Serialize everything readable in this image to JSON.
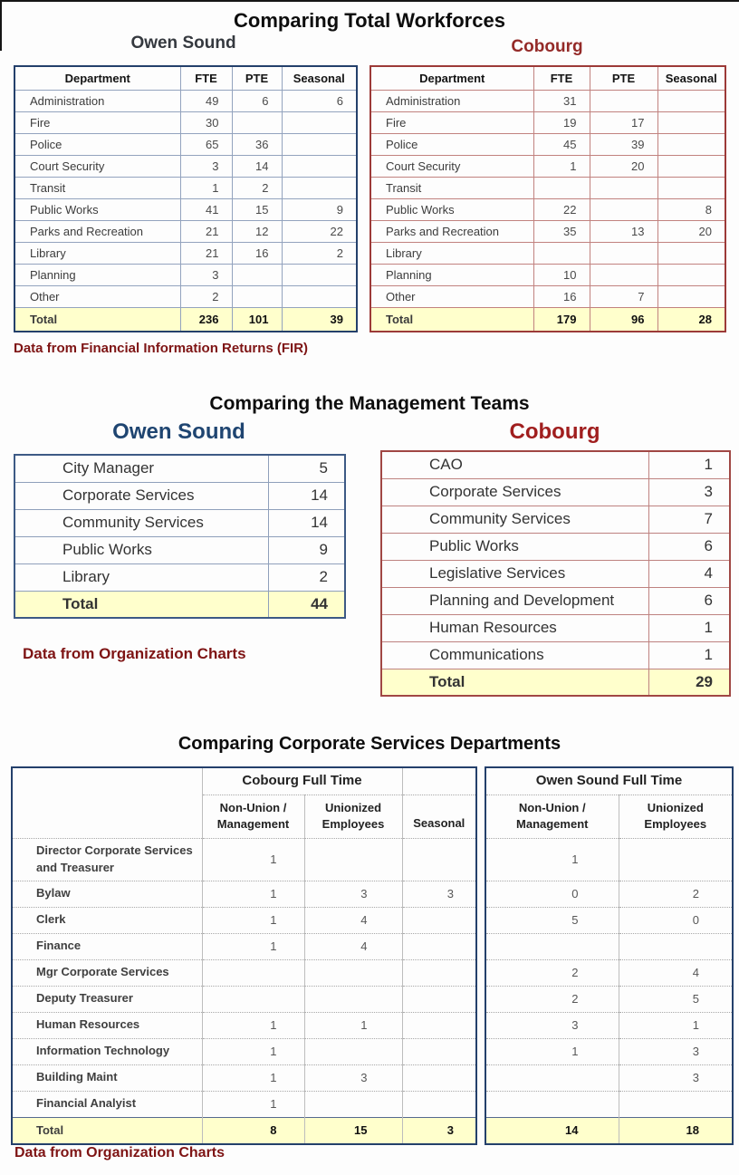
{
  "colors": {
    "owen_navy_border": "#24406B",
    "cobourg_brick_border": "#9C3A38",
    "total_row_yellow": "#FFFFCC",
    "owen_title_blue": "#1F4571",
    "cobourg_title_red": "#A01E1E",
    "caption_maroon": "#7E1414"
  },
  "workforce": {
    "title": "Comparing Total Workforces",
    "caption": "Data from Financial Information Returns (FIR)",
    "owen": {
      "title": "Owen Sound",
      "columns": [
        "Department",
        "FTE",
        "PTE",
        "Seasonal"
      ],
      "rows": [
        [
          "Administration",
          "49",
          "6",
          "6"
        ],
        [
          "Fire",
          "30",
          "",
          ""
        ],
        [
          "Police",
          "65",
          "36",
          ""
        ],
        [
          "Court Security",
          "3",
          "14",
          ""
        ],
        [
          "Transit",
          "1",
          "2",
          ""
        ],
        [
          "Public Works",
          "41",
          "15",
          "9"
        ],
        [
          "Parks and Recreation",
          "21",
          "12",
          "22"
        ],
        [
          "Library",
          "21",
          "16",
          "2"
        ],
        [
          "Planning",
          "3",
          "",
          ""
        ],
        [
          "Other",
          "2",
          "",
          ""
        ]
      ],
      "total": [
        "Total",
        "236",
        "101",
        "39"
      ]
    },
    "cobourg": {
      "title": "Cobourg",
      "columns": [
        "Department",
        "FTE",
        "PTE",
        "Seasonal"
      ],
      "rows": [
        [
          "Administration",
          "31",
          "",
          ""
        ],
        [
          "Fire",
          "19",
          "17",
          ""
        ],
        [
          "Police",
          "45",
          "39",
          ""
        ],
        [
          "Court Security",
          "1",
          "20",
          ""
        ],
        [
          "Transit",
          "",
          "",
          ""
        ],
        [
          "Public Works",
          "22",
          "",
          "8"
        ],
        [
          "Parks and Recreation",
          "35",
          "13",
          "20"
        ],
        [
          "Library",
          "",
          "",
          ""
        ],
        [
          "Planning",
          "10",
          "",
          ""
        ],
        [
          "Other",
          "16",
          "7",
          ""
        ]
      ],
      "total": [
        "Total",
        "179",
        "96",
        "28"
      ]
    }
  },
  "management": {
    "title": "Comparing the Management Teams",
    "caption": "Data from Organization Charts",
    "owen": {
      "title": "Owen Sound",
      "rows": [
        [
          "City Manager",
          "5"
        ],
        [
          "Corporate Services",
          "14"
        ],
        [
          "Community Services",
          "14"
        ],
        [
          "Public Works",
          "9"
        ],
        [
          "Library",
          "2"
        ]
      ],
      "total": [
        "Total",
        "44"
      ]
    },
    "cobourg": {
      "title": "Cobourg",
      "rows": [
        [
          "CAO",
          "1"
        ],
        [
          "Corporate Services",
          "3"
        ],
        [
          "Community Services",
          "7"
        ],
        [
          "Public Works",
          "6"
        ],
        [
          "Legislative Services",
          "4"
        ],
        [
          "Planning and Development",
          "6"
        ],
        [
          "Human Resources",
          "1"
        ],
        [
          "Communications",
          "1"
        ]
      ],
      "total": [
        "Total",
        "29"
      ]
    }
  },
  "corporate": {
    "title": "Comparing Corporate Services Departments",
    "caption": "Data from Organization Charts",
    "cobourg": {
      "title": "Cobourg Full Time",
      "col_headers": [
        [
          "Non-Union /",
          "Management"
        ],
        [
          "Unionized",
          "Employees"
        ],
        [
          "Seasonal"
        ]
      ],
      "rows": [
        [
          "Director Corporate Services and Treasurer",
          "1",
          "",
          ""
        ],
        [
          "Bylaw",
          "1",
          "3",
          "3"
        ],
        [
          "Clerk",
          "1",
          "4",
          ""
        ],
        [
          "Finance",
          "1",
          "4",
          ""
        ],
        [
          "Mgr Corporate Services",
          "",
          "",
          ""
        ],
        [
          "Deputy Treasurer",
          "",
          "",
          ""
        ],
        [
          "Human Resources",
          "1",
          "1",
          ""
        ],
        [
          "Information Technology",
          "1",
          "",
          ""
        ],
        [
          "Building Maint",
          "1",
          "3",
          ""
        ],
        [
          "Financial Analyist",
          "1",
          "",
          ""
        ]
      ],
      "total": [
        "Total",
        "8",
        "15",
        "3"
      ]
    },
    "owen": {
      "title": "Owen Sound Full Time",
      "col_headers": [
        [
          "Non-Union /",
          "Management"
        ],
        [
          "Unionized",
          "Employees"
        ]
      ],
      "rows": [
        [
          "1",
          ""
        ],
        [
          "0",
          "2"
        ],
        [
          "5",
          "0"
        ],
        [
          "",
          ""
        ],
        [
          "2",
          "4"
        ],
        [
          "2",
          "5"
        ],
        [
          "3",
          "1"
        ],
        [
          "1",
          "3"
        ],
        [
          "",
          "3"
        ],
        [
          "",
          ""
        ]
      ],
      "total": [
        "14",
        "18"
      ]
    }
  }
}
